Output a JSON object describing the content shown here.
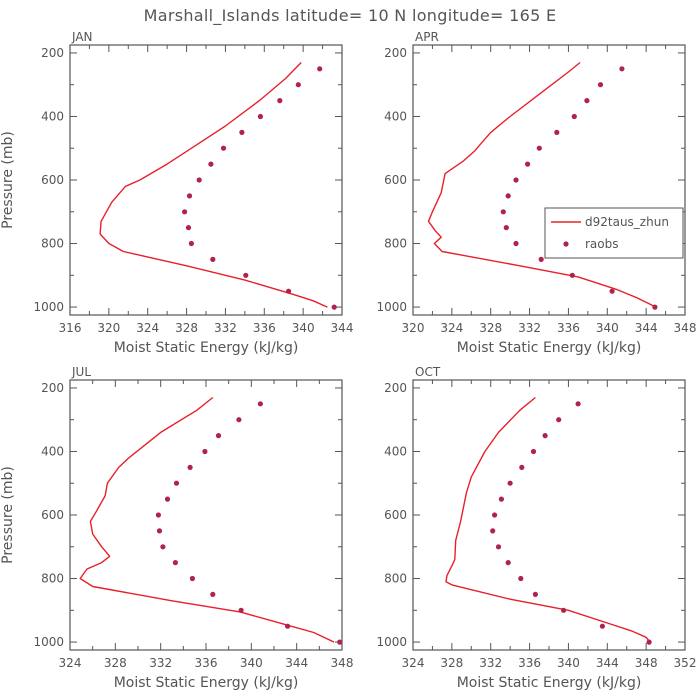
{
  "title": "Marshall_Islands  latitude= 10 N longitude= 165 E",
  "colors": {
    "model": "#e8202a",
    "obs": "#b0234c",
    "axis": "#555555"
  },
  "chart_data": [
    {
      "type": "line",
      "panel": "JAN",
      "xlabel": "Moist Static Energy (kJ/kg)",
      "ylabel": "Pressure (mb)",
      "xlim": [
        316,
        344
      ],
      "ylim": [
        1025,
        175
      ],
      "y_reversed": true,
      "xticks": [
        316,
        320,
        324,
        328,
        332,
        336,
        340,
        344
      ],
      "yticks": [
        200,
        400,
        600,
        800,
        1000
      ],
      "series": [
        {
          "name": "d92taus_zhun",
          "kind": "line",
          "points": [
            [
              339.8,
              230
            ],
            [
              338.2,
              280
            ],
            [
              335.5,
              350
            ],
            [
              332.0,
              430
            ],
            [
              329.0,
              490
            ],
            [
              326.0,
              550
            ],
            [
              323.2,
              600
            ],
            [
              321.7,
              620
            ],
            [
              320.3,
              670
            ],
            [
              319.2,
              730
            ],
            [
              319.1,
              770
            ],
            [
              320.0,
              800
            ],
            [
              321.5,
              825
            ],
            [
              328.0,
              870
            ],
            [
              334.0,
              915
            ],
            [
              339.0,
              960
            ],
            [
              341.0,
              980
            ],
            [
              342.5,
              1000
            ]
          ]
        },
        {
          "name": "raobs",
          "kind": "scatter",
          "points": [
            [
              341.7,
              250
            ],
            [
              339.5,
              300
            ],
            [
              337.6,
              350
            ],
            [
              335.6,
              400
            ],
            [
              333.7,
              450
            ],
            [
              331.8,
              500
            ],
            [
              330.5,
              550
            ],
            [
              329.3,
              600
            ],
            [
              328.3,
              650
            ],
            [
              327.8,
              700
            ],
            [
              328.2,
              750
            ],
            [
              328.5,
              800
            ],
            [
              330.7,
              850
            ],
            [
              334.1,
              900
            ],
            [
              338.5,
              950
            ],
            [
              343.2,
              1000
            ]
          ]
        }
      ]
    },
    {
      "type": "line",
      "panel": "APR",
      "xlabel": "Moist Static Energy (kJ/kg)",
      "ylabel": "",
      "xlim": [
        320,
        348
      ],
      "ylim": [
        1025,
        175
      ],
      "y_reversed": true,
      "xticks": [
        320,
        324,
        328,
        332,
        336,
        340,
        344,
        348
      ],
      "yticks": [
        200,
        400,
        600,
        800,
        1000
      ],
      "legend": {
        "position": "right",
        "entries": [
          "d92taus_zhun",
          "raobs"
        ]
      },
      "series": [
        {
          "name": "d92taus_zhun",
          "kind": "line",
          "points": [
            [
              337.2,
              230
            ],
            [
              336.0,
              260
            ],
            [
              333.0,
              330
            ],
            [
              330.0,
              400
            ],
            [
              328.0,
              450
            ],
            [
              326.3,
              510
            ],
            [
              325.2,
              540
            ],
            [
              323.3,
              580
            ],
            [
              322.9,
              640
            ],
            [
              322.0,
              700
            ],
            [
              321.6,
              730
            ],
            [
              322.3,
              760
            ],
            [
              322.9,
              780
            ],
            [
              322.2,
              800
            ],
            [
              323.0,
              825
            ],
            [
              331.0,
              870
            ],
            [
              337.0,
              905
            ],
            [
              341.0,
              945
            ],
            [
              343.0,
              970
            ],
            [
              345.0,
              1000
            ]
          ]
        },
        {
          "name": "raobs",
          "kind": "scatter",
          "points": [
            [
              341.5,
              250
            ],
            [
              339.3,
              300
            ],
            [
              337.9,
              350
            ],
            [
              336.6,
              400
            ],
            [
              334.8,
              450
            ],
            [
              333.0,
              500
            ],
            [
              331.8,
              550
            ],
            [
              330.6,
              600
            ],
            [
              329.8,
              650
            ],
            [
              329.3,
              700
            ],
            [
              329.6,
              750
            ],
            [
              330.6,
              800
            ],
            [
              333.2,
              850
            ],
            [
              336.4,
              900
            ],
            [
              340.5,
              950
            ],
            [
              344.9,
              1000
            ]
          ]
        }
      ]
    },
    {
      "type": "line",
      "panel": "JUL",
      "xlabel": "Moist Static Energy (kJ/kg)",
      "ylabel": "Pressure (mb)",
      "xlim": [
        324,
        348
      ],
      "ylim": [
        1025,
        175
      ],
      "y_reversed": true,
      "xticks": [
        324,
        328,
        332,
        336,
        340,
        344,
        348
      ],
      "yticks": [
        200,
        400,
        600,
        800,
        1000
      ],
      "series": [
        {
          "name": "d92taus_zhun",
          "kind": "line",
          "points": [
            [
              336.6,
              230
            ],
            [
              335.2,
              270
            ],
            [
              332.0,
              340
            ],
            [
              329.2,
              420
            ],
            [
              328.3,
              450
            ],
            [
              327.3,
              500
            ],
            [
              327.1,
              540
            ],
            [
              326.3,
              590
            ],
            [
              325.8,
              620
            ],
            [
              326.0,
              660
            ],
            [
              326.8,
              700
            ],
            [
              327.5,
              730
            ],
            [
              326.8,
              750
            ],
            [
              325.5,
              770
            ],
            [
              324.9,
              800
            ],
            [
              326.0,
              825
            ],
            [
              333.0,
              870
            ],
            [
              339.0,
              905
            ],
            [
              343.0,
              945
            ],
            [
              345.5,
              970
            ],
            [
              347.3,
              1000
            ]
          ]
        },
        {
          "name": "raobs",
          "kind": "scatter",
          "points": [
            [
              340.8,
              250
            ],
            [
              338.9,
              300
            ],
            [
              337.1,
              350
            ],
            [
              335.9,
              400
            ],
            [
              334.6,
              450
            ],
            [
              333.4,
              500
            ],
            [
              332.6,
              550
            ],
            [
              331.8,
              600
            ],
            [
              331.9,
              650
            ],
            [
              332.2,
              700
            ],
            [
              333.3,
              750
            ],
            [
              334.8,
              800
            ],
            [
              336.6,
              850
            ],
            [
              339.1,
              900
            ],
            [
              343.2,
              950
            ],
            [
              347.8,
              1000
            ]
          ]
        }
      ]
    },
    {
      "type": "line",
      "panel": "OCT",
      "xlabel": "Moist Static Energy (kJ/kg)",
      "ylabel": "",
      "xlim": [
        324,
        352
      ],
      "ylim": [
        1025,
        175
      ],
      "y_reversed": true,
      "xticks": [
        324,
        328,
        332,
        336,
        340,
        344,
        348,
        352
      ],
      "yticks": [
        200,
        400,
        600,
        800,
        1000
      ],
      "series": [
        {
          "name": "d92taus_zhun",
          "kind": "line",
          "points": [
            [
              336.6,
              230
            ],
            [
              335.0,
              270
            ],
            [
              332.8,
              340
            ],
            [
              331.4,
              400
            ],
            [
              330.0,
              480
            ],
            [
              329.5,
              530
            ],
            [
              328.9,
              620
            ],
            [
              328.4,
              680
            ],
            [
              328.3,
              740
            ],
            [
              328.0,
              760
            ],
            [
              327.5,
              790
            ],
            [
              327.4,
              810
            ],
            [
              328.0,
              820
            ],
            [
              334.0,
              865
            ],
            [
              340.0,
              900
            ],
            [
              344.0,
              940
            ],
            [
              346.5,
              965
            ],
            [
              348.0,
              985
            ],
            [
              348.4,
              1000
            ]
          ]
        },
        {
          "name": "raobs",
          "kind": "scatter",
          "points": [
            [
              341.0,
              250
            ],
            [
              339.0,
              300
            ],
            [
              337.6,
              350
            ],
            [
              336.4,
              400
            ],
            [
              335.2,
              450
            ],
            [
              334.0,
              500
            ],
            [
              333.1,
              550
            ],
            [
              332.4,
              600
            ],
            [
              332.2,
              650
            ],
            [
              332.8,
              700
            ],
            [
              333.8,
              750
            ],
            [
              335.1,
              800
            ],
            [
              336.6,
              850
            ],
            [
              339.5,
              900
            ],
            [
              343.5,
              950
            ],
            [
              348.3,
              1000
            ]
          ]
        }
      ]
    }
  ]
}
